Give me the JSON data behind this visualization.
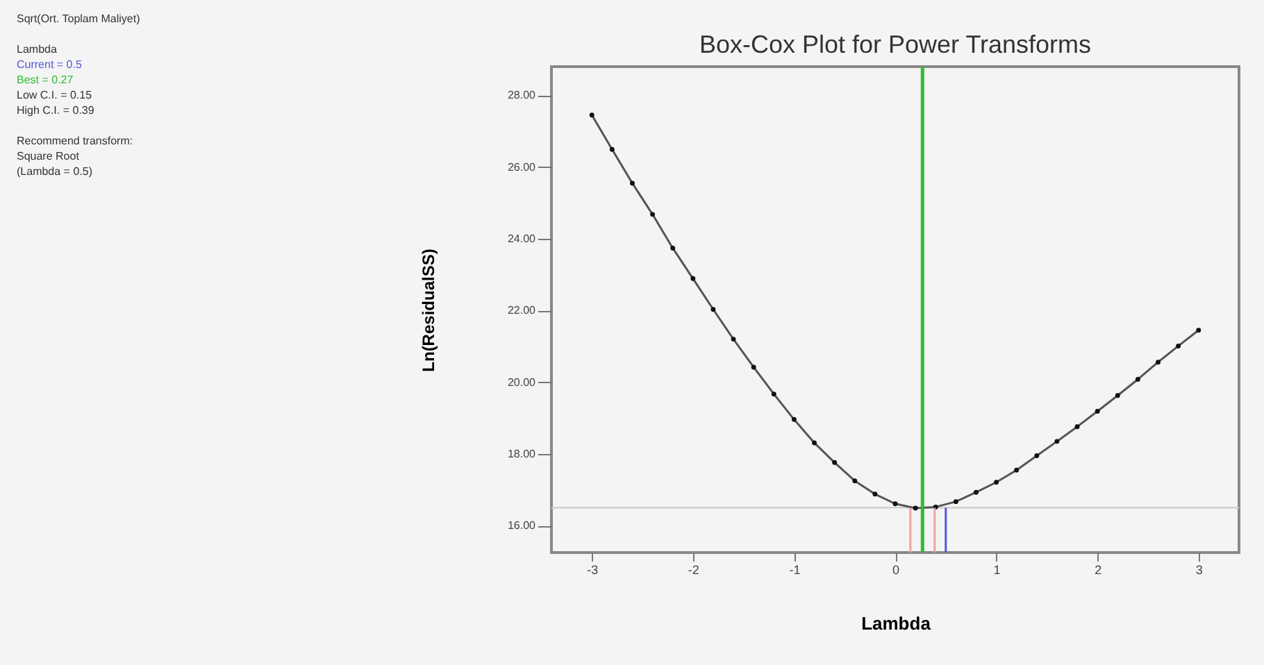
{
  "chart_data": {
    "type": "line",
    "title": "Box-Cox Plot for Power Transforms",
    "xlabel": "Lambda",
    "ylabel": "Ln(ResidualSS)",
    "x": [
      -3,
      -2.8,
      -2.6,
      -2.4,
      -2.2,
      -2.0,
      -1.8,
      -1.6,
      -1.4,
      -1.2,
      -1.0,
      -0.8,
      -0.6,
      -0.4,
      -0.2,
      0,
      0.2,
      0.4,
      0.6,
      0.8,
      1.0,
      1.2,
      1.4,
      1.6,
      1.8,
      2.0,
      2.2,
      2.4,
      2.6,
      2.8,
      3.0
    ],
    "series": [
      {
        "color": "#555555",
        "values": [
          27.45,
          26.49,
          25.55,
          24.68,
          23.74,
          22.89,
          22.03,
          21.2,
          20.42,
          19.67,
          18.96,
          18.31,
          17.76,
          17.25,
          16.88,
          16.61,
          16.49,
          16.52,
          16.67,
          16.93,
          17.21,
          17.55,
          17.95,
          18.35,
          18.76,
          19.19,
          19.63,
          20.08,
          20.56,
          21.01,
          21.45
        ]
      }
    ],
    "marker": "circle",
    "line_style": "solid",
    "grid": false,
    "xlim": [
      -3.4,
      3.4
    ],
    "xticks": [
      -3,
      -2,
      -1,
      0,
      1,
      2,
      3
    ],
    "ylim": [
      15.25,
      28.8
    ],
    "yticks": [
      {
        "value": 16,
        "label": "16.00"
      },
      {
        "value": 18,
        "label": "18.00"
      },
      {
        "value": 20,
        "label": "20.00"
      },
      {
        "value": 22,
        "label": "22.00"
      },
      {
        "value": 24,
        "label": "24.00"
      },
      {
        "value": 26,
        "label": "26.00"
      },
      {
        "value": 28,
        "label": "28.00"
      }
    ],
    "ref_lines": [
      {
        "axis": "x",
        "value": 0.5,
        "label": "Current = 0.5",
        "color": "#5555dd"
      },
      {
        "axis": "x",
        "value": 0.27,
        "label": "Best = 0.27",
        "color": "#33bb33"
      },
      {
        "axis": "x",
        "value": 0.15,
        "color": "#f0a0a8"
      },
      {
        "axis": "x",
        "value": 0.39,
        "color": "#f0a0a8"
      },
      {
        "axis": "y",
        "value": 16.5,
        "color": "#cccccc"
      }
    ],
    "annotations": [
      "Sqrt(Ort. Toplam Maliyet)",
      "Lambda",
      "Low C.I. = 0.15",
      "High C.I. = 0.39",
      "Recommend transform:",
      "Square Root",
      " (Lambda = 0.5)"
    ]
  }
}
